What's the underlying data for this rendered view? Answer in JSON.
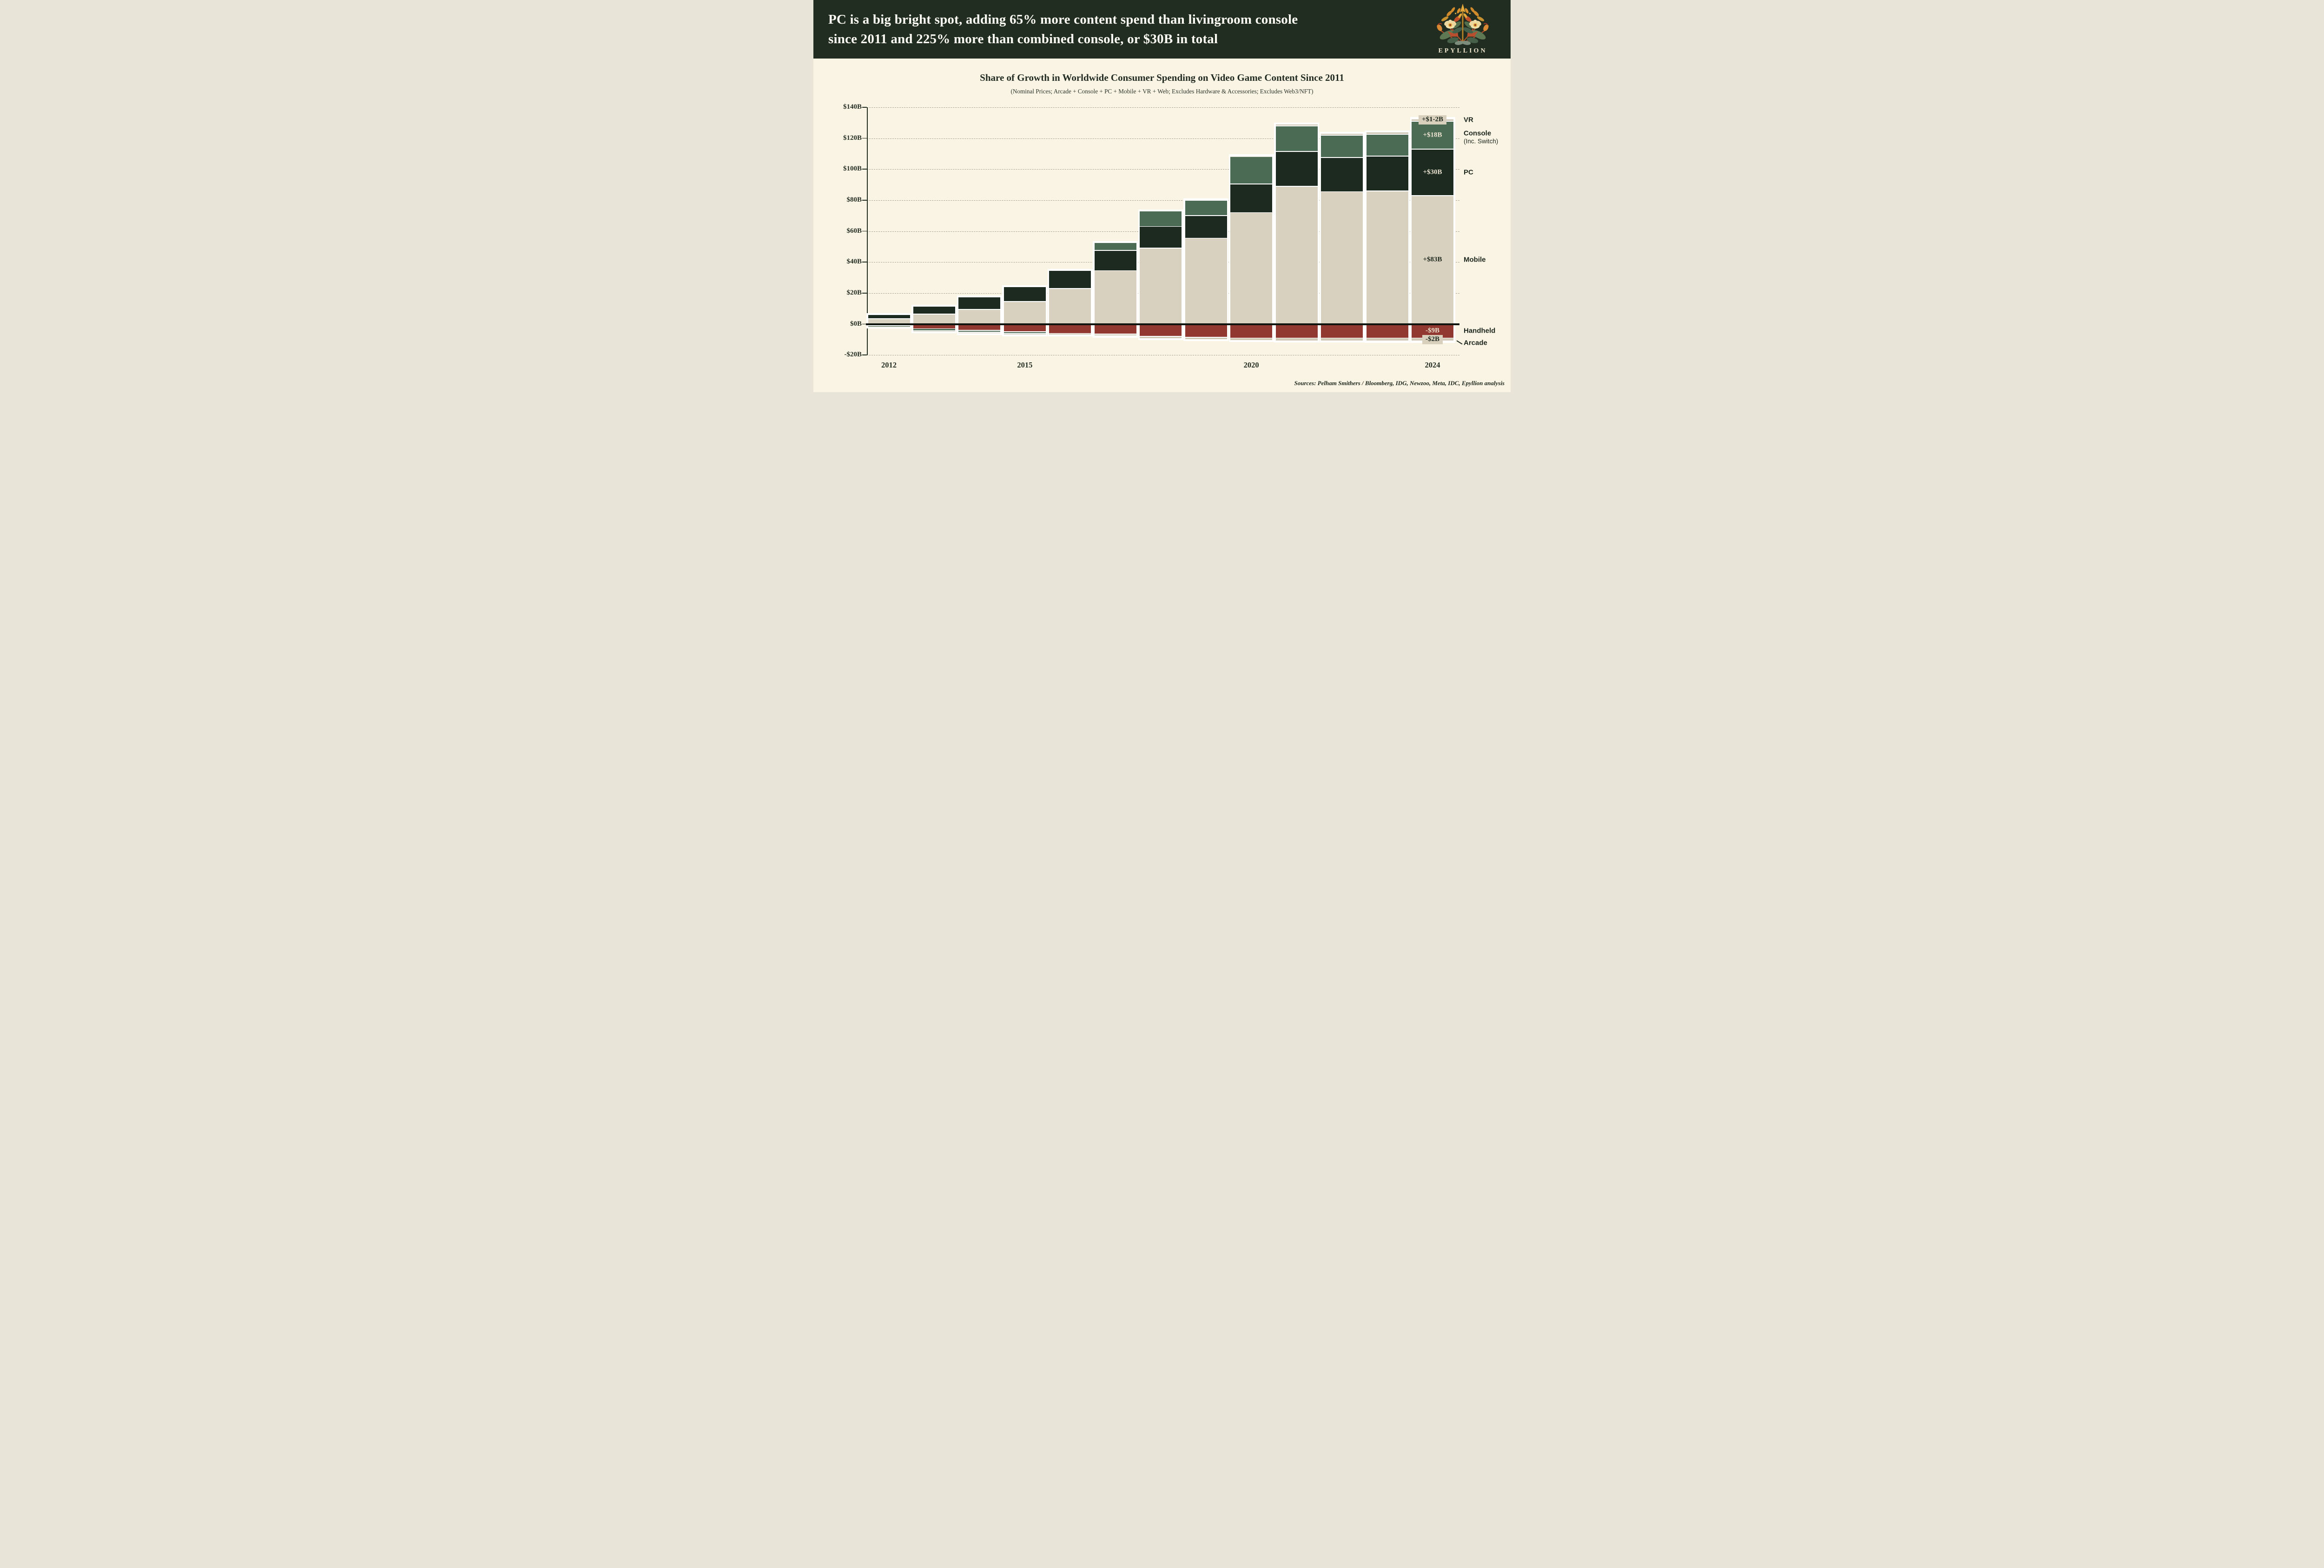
{
  "header": {
    "title_line1": "PC is a big bright spot, adding 65% more content spend than livingroom console",
    "title_line2": "since 2011 and 225% more than combined console, or $30B in total",
    "brand": "EPYLLION"
  },
  "chart": {
    "title": "Share of Growth in Worldwide Consumer Spending on Video Game Content Since 2011",
    "subtitle": "(Nominal Prices; Arcade + Console + PC + Mobile + VR + Web; Excludes Hardware & Accessories; Excludes Web3/NFT)"
  },
  "chart_data": {
    "type": "bar",
    "stacked": true,
    "title": "Share of Growth in Worldwide Consumer Spending on Video Game Content Since 2011",
    "categories": [
      2012,
      2013,
      2014,
      2015,
      2016,
      2017,
      2018,
      2019,
      2020,
      2021,
      2022,
      2023,
      2024
    ],
    "ylim": [
      -20,
      140
    ],
    "grid": "dashed-horizontal",
    "legend_position": "right",
    "y_ticks": [
      {
        "label": "$140B",
        "value": 140
      },
      {
        "label": "$120B",
        "value": 120
      },
      {
        "label": "$100B",
        "value": 100
      },
      {
        "label": "$80B",
        "value": 80
      },
      {
        "label": "$60B",
        "value": 60
      },
      {
        "label": "$40B",
        "value": 40
      },
      {
        "label": "$20B",
        "value": 20
      },
      {
        "label": "$0B",
        "value": 0
      },
      {
        "label": "-$20B",
        "value": -20
      }
    ],
    "x_tick_labels": [
      {
        "label": "2012",
        "index": 0
      },
      {
        "label": "2015",
        "index": 3
      },
      {
        "label": "2020",
        "index": 8
      },
      {
        "label": "2024",
        "index": 12
      }
    ],
    "series": [
      {
        "id": "mobile",
        "name": "Mobile",
        "color": "#d9d1c0",
        "annotation": "+$83B",
        "annotation_style": "dark",
        "values": [
          3.5,
          6.5,
          9.5,
          14.5,
          23,
          34.5,
          49,
          55.5,
          72,
          89,
          85.5,
          86,
          83
        ]
      },
      {
        "id": "pc",
        "name": "PC",
        "color": "#1c2a20",
        "annotation": "+$30B",
        "annotation_style": "light",
        "values": [
          2.5,
          5,
          8,
          9.5,
          11.5,
          13,
          14,
          14.5,
          18.5,
          22.5,
          22,
          22.5,
          30
        ]
      },
      {
        "id": "console",
        "name": "Console",
        "sub": "(Inc. Switch)",
        "color": "#4b6b55",
        "annotation": "+$18B",
        "annotation_style": "light",
        "values": [
          -0.4,
          -1.4,
          -1.3,
          -1.2,
          0,
          5,
          10,
          10,
          17.5,
          16.5,
          14.5,
          14,
          18
        ]
      },
      {
        "id": "vr",
        "name": "VR",
        "color": "#cdc5b2",
        "annotation": "+$1-2B",
        "annotation_style": "box",
        "values": [
          0,
          0,
          0,
          0,
          0,
          0,
          0,
          0,
          0.5,
          1,
          1,
          1.5,
          1.5
        ]
      },
      {
        "id": "handheld",
        "name": "Handheld",
        "color": "#913930",
        "annotation": "-$9B",
        "annotation_style": "light",
        "values": [
          -1,
          -3,
          -4,
          -5,
          -6,
          -6.5,
          -8,
          -8.5,
          -9,
          -9,
          -9,
          -9,
          -9
        ]
      },
      {
        "id": "arcade",
        "name": "Arcade",
        "color": "#cfc8b5",
        "annotation": "-$2B",
        "annotation_style": "box",
        "values": [
          -0.4,
          -0.5,
          -0.6,
          -0.8,
          -1,
          -1.2,
          -1.4,
          -1.5,
          -1.6,
          -1.8,
          -1.9,
          -2,
          -2
        ]
      }
    ],
    "stack_order_positive": [
      "mobile",
      "pc",
      "console",
      "vr"
    ],
    "stack_order_negative": [
      "handheld",
      "console",
      "arcade"
    ],
    "colors": {
      "background": "#faf4e4",
      "header": "#212d20",
      "zero_line": "#10150f",
      "gridline": "#a9a294",
      "axis": "#262f24",
      "label_box": "#d8d0bd",
      "light_text": "#ece3d0",
      "dark_text": "#1f291e"
    }
  },
  "footer": {
    "sources": "Sources: Pelham Smithers / Bloomberg, IDG, Newzoo, Meta, IDC, Epyllion analysis"
  }
}
